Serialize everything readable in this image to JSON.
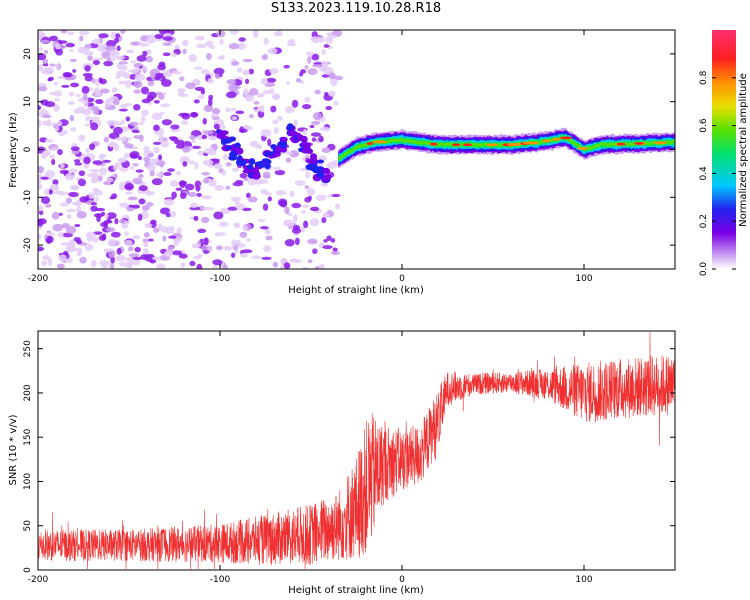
{
  "figure": {
    "title": "S133.2023.119.10.28.R18"
  },
  "chart_data": [
    {
      "type": "heatmap",
      "title": "S133.2023.119.10.28.R18",
      "xlabel": "Height of straight line (km)",
      "ylabel": "Frequency (Hz)",
      "xlim": [
        -200,
        150
      ],
      "ylim": [
        -25,
        25
      ],
      "x_ticks": [
        -200,
        -100,
        0,
        100
      ],
      "y_ticks": [
        -20,
        -10,
        0,
        10,
        20
      ],
      "colorbar": {
        "label": "Normalized spectral amplitude",
        "range": [
          0,
          1
        ],
        "ticks": [
          0.0,
          0.2,
          0.4,
          0.6,
          0.8
        ],
        "colormap": [
          "#ffffff",
          "#c99bf0",
          "#7a00e6",
          "#2222ee",
          "#00c8ff",
          "#00e070",
          "#55e000",
          "#e8e000",
          "#ff9000",
          "#ff2020",
          "#ff3070"
        ]
      },
      "description_features": {
        "noise_region_x": [
          -200,
          -30
        ],
        "signal_band_x": [
          -35,
          150
        ],
        "signal_band_center_freq": [
          [
            -35,
            -2
          ],
          [
            -25,
            0.5
          ],
          [
            -15,
            1.5
          ],
          [
            0,
            2
          ],
          [
            20,
            1
          ],
          [
            40,
            1
          ],
          [
            60,
            1
          ],
          [
            75,
            1.5
          ],
          [
            90,
            2.5
          ],
          [
            100,
            0
          ],
          [
            110,
            1
          ],
          [
            150,
            1.5
          ]
        ],
        "diagonal_feature": [
          [
            -100,
            3
          ],
          [
            -80,
            -5
          ],
          [
            -60,
            4
          ],
          [
            -40,
            -7
          ]
        ]
      }
    },
    {
      "type": "line",
      "xlabel": "Height of straight line (km)",
      "ylabel": "SNR (10 * v/v)",
      "xlim": [
        -200,
        150
      ],
      "ylim": [
        0,
        270
      ],
      "x_ticks": [
        -200,
        -100,
        0,
        100
      ],
      "y_ticks": [
        0,
        50,
        100,
        150,
        200,
        250
      ],
      "color": "#f03030",
      "series": [
        {
          "name": "",
          "envelope_x": [
            -200,
            -150,
            -100,
            -70,
            -50,
            -35,
            -25,
            -18,
            -10,
            0,
            10,
            20,
            25,
            40,
            60,
            80,
            100,
            120,
            150
          ],
          "mean_y": [
            28,
            28,
            30,
            35,
            40,
            50,
            70,
            100,
            120,
            125,
            130,
            170,
            205,
            210,
            212,
            210,
            200,
            205,
            210
          ],
          "spread": [
            18,
            18,
            22,
            30,
            35,
            40,
            60,
            80,
            45,
            35,
            35,
            35,
            20,
            12,
            12,
            18,
            35,
            35,
            35
          ]
        }
      ]
    }
  ]
}
